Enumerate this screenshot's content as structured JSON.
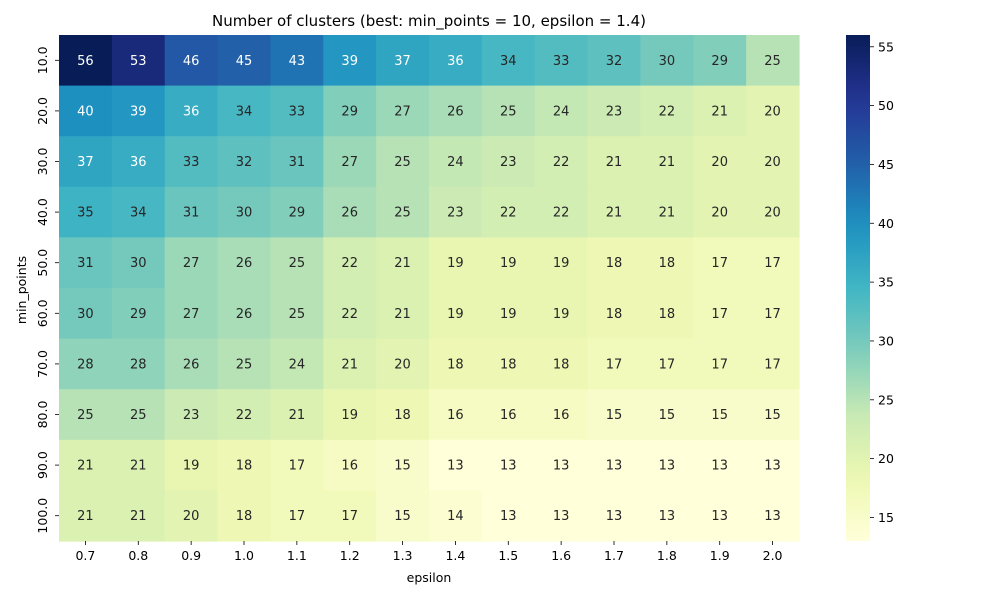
{
  "chart_data": {
    "type": "heatmap",
    "title": "Number of clusters (best: min_points = 10, epsilon = 1.4)",
    "xlabel": "epsilon",
    "ylabel": "min_points",
    "x": [
      "0.7",
      "0.8",
      "0.9",
      "1.0",
      "1.1",
      "1.2",
      "1.3",
      "1.4",
      "1.5",
      "1.6",
      "1.7",
      "1.8",
      "1.9",
      "2.0"
    ],
    "y": [
      "10.0",
      "20.0",
      "30.0",
      "40.0",
      "50.0",
      "60.0",
      "70.0",
      "80.0",
      "90.0",
      "100.0"
    ],
    "values": [
      [
        56,
        53,
        46,
        45,
        43,
        39,
        37,
        36,
        34,
        33,
        32,
        30,
        29,
        25
      ],
      [
        40,
        39,
        36,
        34,
        33,
        29,
        27,
        26,
        25,
        24,
        23,
        22,
        21,
        20
      ],
      [
        37,
        36,
        33,
        32,
        31,
        27,
        25,
        24,
        23,
        22,
        21,
        21,
        20,
        20
      ],
      [
        35,
        34,
        31,
        30,
        29,
        26,
        25,
        23,
        22,
        22,
        21,
        21,
        20,
        20
      ],
      [
        31,
        30,
        27,
        26,
        25,
        22,
        21,
        19,
        19,
        19,
        18,
        18,
        17,
        17
      ],
      [
        30,
        29,
        27,
        26,
        25,
        22,
        21,
        19,
        19,
        19,
        18,
        18,
        17,
        17
      ],
      [
        28,
        28,
        26,
        25,
        24,
        21,
        20,
        18,
        18,
        18,
        17,
        17,
        17,
        17
      ],
      [
        25,
        25,
        23,
        22,
        21,
        19,
        18,
        16,
        16,
        16,
        15,
        15,
        15,
        15
      ],
      [
        21,
        21,
        19,
        18,
        17,
        16,
        15,
        13,
        13,
        13,
        13,
        13,
        13,
        13
      ],
      [
        21,
        21,
        20,
        18,
        17,
        17,
        15,
        14,
        13,
        13,
        13,
        13,
        13,
        13
      ]
    ],
    "colormap": "YlGnBu",
    "vmin": 13,
    "vmax": 56,
    "colorbar_ticks": [
      15,
      20,
      25,
      30,
      35,
      40,
      45,
      50,
      55
    ],
    "grid": false,
    "colorbar_position": "right"
  }
}
